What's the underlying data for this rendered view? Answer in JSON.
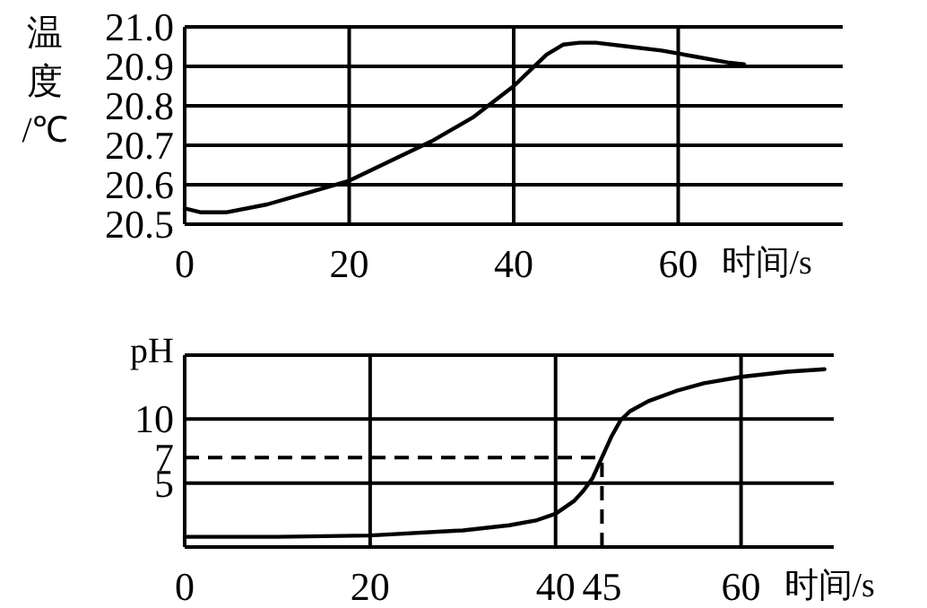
{
  "chart_data": [
    {
      "type": "line",
      "ylabel": "温度/℃",
      "xlabel": "时间/s",
      "xlim": [
        0,
        80
      ],
      "ylim": [
        20.5,
        21.0
      ],
      "xticks": [
        0,
        20,
        40,
        60
      ],
      "yticks": [
        20.5,
        20.6,
        20.7,
        20.8,
        20.9,
        {
          "value": 21.0,
          "label": "21.0"
        }
      ],
      "grid": true,
      "series": [
        {
          "color": "#000000",
          "x": [
            0,
            2,
            5,
            10,
            15,
            20,
            25,
            30,
            35,
            40,
            42,
            44,
            46,
            48,
            50,
            54,
            58,
            62,
            66,
            68
          ],
          "values": [
            20.54,
            20.53,
            20.53,
            20.55,
            20.58,
            20.61,
            20.66,
            20.71,
            20.77,
            20.85,
            20.89,
            20.93,
            20.955,
            20.96,
            20.96,
            20.95,
            20.94,
            20.925,
            20.91,
            20.905
          ]
        }
      ]
    },
    {
      "type": "line",
      "ylabel": "pH",
      "xlabel": "时间/s",
      "xlim": [
        0,
        70
      ],
      "ylim": [
        0,
        15
      ],
      "xticks": [
        0,
        20,
        40,
        45,
        60
      ],
      "yticks": [
        5,
        7,
        10
      ],
      "grid": true,
      "ref_lines": [
        {
          "axis": "y",
          "value": 7,
          "line_style": "dashed",
          "label": null
        },
        {
          "axis": "x",
          "value": 45,
          "line_style": "dashed",
          "label": null
        }
      ],
      "series": [
        {
          "color": "#000000",
          "x": [
            0,
            10,
            20,
            30,
            35,
            38,
            40,
            42,
            43,
            44,
            45,
            46,
            47,
            48,
            50,
            53,
            56,
            60,
            65,
            69
          ],
          "values": [
            0.8,
            0.8,
            0.9,
            1.3,
            1.7,
            2.1,
            2.6,
            3.6,
            4.4,
            5.4,
            7.0,
            8.6,
            9.9,
            10.6,
            11.4,
            12.2,
            12.8,
            13.3,
            13.7,
            13.9
          ]
        }
      ]
    }
  ]
}
